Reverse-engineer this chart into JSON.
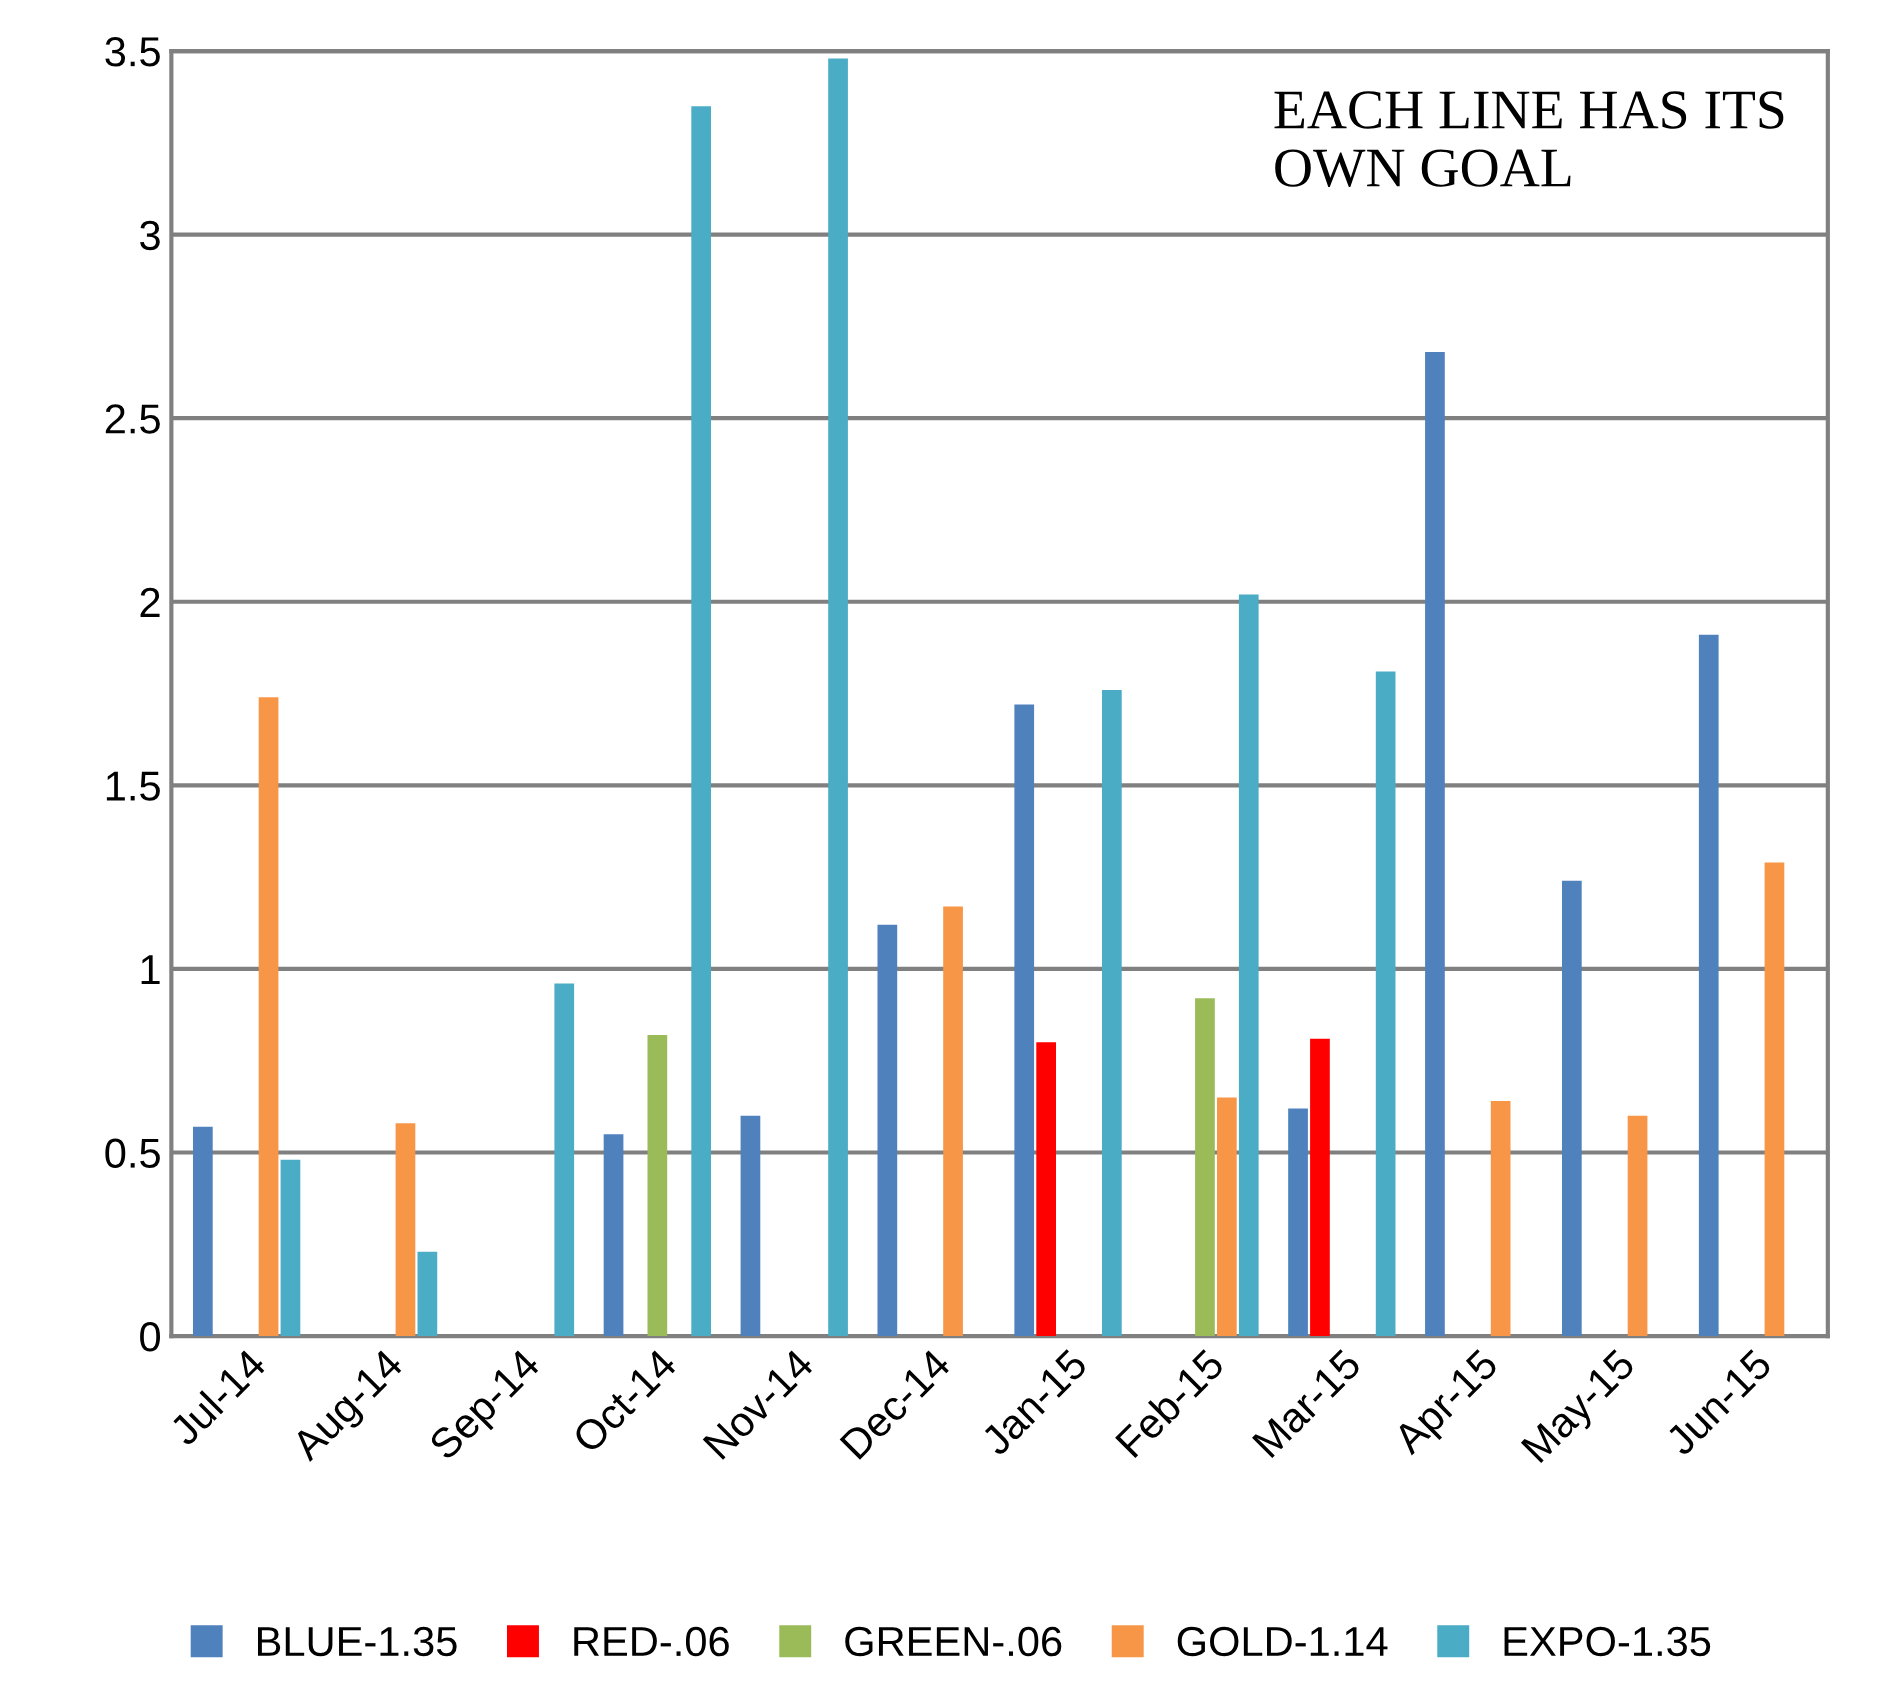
{
  "chart_data": {
    "type": "bar",
    "categories": [
      "Jul-14",
      "Aug-14",
      "Sep-14",
      "Oct-14",
      "Nov-14",
      "Dec-14",
      "Jan-15",
      "Feb-15",
      "Mar-15",
      "Apr-15",
      "May-15",
      "Jun-15"
    ],
    "series": [
      {
        "name": "BLUE-1.35",
        "color": "#4f81bd",
        "values": [
          0.57,
          0,
          0,
          0.55,
          0.6,
          1.12,
          1.72,
          0,
          0.62,
          2.68,
          1.24,
          1.91
        ]
      },
      {
        "name": "RED-.06",
        "color": "#ff0000",
        "values": [
          0,
          0,
          0,
          0,
          0,
          0,
          0.8,
          0,
          0.81,
          0,
          0,
          0
        ]
      },
      {
        "name": "GREEN-.06",
        "color": "#9bbb59",
        "values": [
          0,
          0,
          0,
          0.82,
          0,
          0,
          0,
          0.92,
          0,
          0,
          0,
          0
        ]
      },
      {
        "name": "GOLD-1.14",
        "color": "#f79646",
        "values": [
          1.74,
          0.58,
          0,
          0,
          0,
          1.17,
          0,
          0.65,
          0,
          0.64,
          0.6,
          1.29
        ]
      },
      {
        "name": "EXPO-1.35",
        "color": "#4bacc6",
        "values": [
          0.48,
          0.23,
          0.96,
          3.35,
          3.48,
          0,
          1.76,
          2.02,
          1.81,
          0,
          0,
          0
        ]
      }
    ],
    "ylim": [
      0,
      3.5
    ],
    "yticks": [
      0,
      0.5,
      1,
      1.5,
      2,
      2.5,
      3,
      3.5
    ],
    "grid": "y",
    "legend": "bottom",
    "annotations": [
      "EACH LINE HAS ITS OWN GOAL"
    ]
  }
}
